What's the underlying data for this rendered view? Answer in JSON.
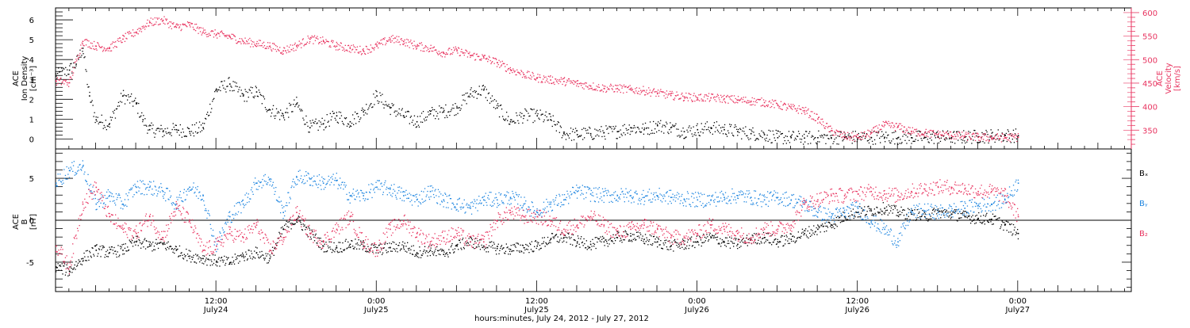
{
  "colors": {
    "density": "#000000",
    "velocity": "#e8335f",
    "bx": "#000000",
    "by": "#1f86e0",
    "bz": "#e8335f",
    "frame": "#000000"
  },
  "chart_data": [
    {
      "type": "scatter",
      "panel": "top",
      "ylabel_left": [
        "ACE",
        "Ion Density",
        "[cm⁻³]"
      ],
      "ylabel_right": [
        "ACE",
        "Velocity",
        "[km/s]"
      ],
      "y_left_ticks": [
        "0",
        "1",
        "2",
        "3",
        "4",
        "5",
        "6"
      ],
      "y_left_range": [
        -0.5,
        6.6
      ],
      "y_right_ticks": [
        "350",
        "400",
        "450",
        "500",
        "550",
        "600"
      ],
      "y_right_range": [
        310,
        610
      ],
      "series": [
        {
          "key": "density",
          "x_hours": [
            0,
            1,
            1.5,
            2,
            2.5,
            3,
            4,
            5,
            6,
            6.5,
            7,
            8,
            9,
            10,
            11,
            12,
            13,
            14,
            15,
            16,
            17,
            18,
            19,
            20,
            21,
            22,
            23,
            24,
            25,
            26,
            27,
            28,
            29,
            30,
            31,
            32,
            33,
            34,
            35,
            36,
            37,
            38,
            39,
            40,
            41,
            42,
            43,
            44,
            45,
            46,
            47,
            48,
            49,
            50,
            51,
            52,
            53,
            54,
            55,
            56,
            57,
            58,
            59,
            60,
            61,
            62,
            63,
            64,
            65,
            66,
            67,
            68,
            69,
            70,
            71,
            72
          ],
          "values": [
            3.2,
            3.5,
            3.8,
            4.6,
            2.2,
            1.0,
            0.8,
            2.2,
            1.8,
            1.0,
            0.5,
            0.4,
            0.5,
            0.4,
            0.6,
            2.5,
            2.8,
            2.2,
            2.4,
            1.5,
            1.2,
            1.8,
            0.6,
            0.8,
            1.2,
            0.9,
            1.4,
            2.2,
            1.6,
            1.2,
            0.9,
            1.3,
            1.4,
            1.6,
            2.3,
            2.5,
            1.6,
            0.9,
            1.2,
            1.2,
            1.0,
            0.3,
            0.25,
            0.3,
            0.35,
            0.4,
            0.6,
            0.5,
            0.7,
            0.6,
            0.4,
            0.5,
            0.6,
            0.5,
            0.4,
            0.3,
            0.25,
            0.1,
            0.1,
            0.08,
            0.1,
            0.1,
            0.12,
            0.1,
            0.1,
            0.12,
            0.1,
            0.1,
            0.1,
            0.12,
            0.1,
            0.12,
            0.15,
            0.18,
            0.2,
            0.2
          ]
        },
        {
          "key": "velocity",
          "axis": "right",
          "x_hours": [
            0,
            1,
            2,
            3,
            4,
            5,
            6,
            7,
            8,
            9,
            10,
            11,
            12,
            13,
            14,
            15,
            16,
            17,
            18,
            19,
            20,
            21,
            22,
            23,
            24,
            25,
            26,
            27,
            28,
            29,
            30,
            31,
            32,
            33,
            34,
            35,
            36,
            37,
            38,
            39,
            40,
            41,
            42,
            43,
            44,
            45,
            46,
            47,
            48,
            49,
            50,
            51,
            52,
            53,
            54,
            55,
            56,
            57,
            58,
            59,
            60,
            61,
            62,
            63,
            64,
            65,
            66,
            67,
            68,
            69,
            70,
            71,
            72
          ],
          "values": [
            455,
            452,
            540,
            530,
            525,
            545,
            560,
            580,
            585,
            570,
            575,
            560,
            555,
            550,
            540,
            535,
            530,
            520,
            530,
            545,
            540,
            530,
            525,
            520,
            530,
            545,
            540,
            530,
            525,
            515,
            520,
            510,
            505,
            495,
            480,
            470,
            462,
            458,
            455,
            450,
            445,
            440,
            440,
            437,
            435,
            430,
            425,
            422,
            420,
            420,
            418,
            415,
            413,
            410,
            405,
            398,
            393,
            375,
            350,
            338,
            335,
            345,
            362,
            358,
            348,
            345,
            342,
            340,
            338,
            336,
            335,
            335,
            336
          ]
        }
      ]
    },
    {
      "type": "scatter",
      "panel": "bottom",
      "ylabel_left": [
        "ACE",
        "B",
        "[nT]"
      ],
      "y_ticks": [
        "-5",
        "0",
        "5"
      ],
      "y_range": [
        -8.5,
        8.5
      ],
      "zero_line": true,
      "legend": [
        "Bₓ",
        "Bᵧ",
        "B₂"
      ],
      "series": [
        {
          "key": "bx",
          "name": "Bₓ",
          "x_hours": [
            0,
            1,
            2,
            3,
            4,
            5,
            6,
            7,
            8,
            9,
            10,
            11,
            12,
            13,
            14,
            15,
            16,
            17,
            18,
            19,
            20,
            21,
            22,
            23,
            24,
            25,
            26,
            27,
            28,
            29,
            30,
            31,
            32,
            33,
            34,
            35,
            36,
            37,
            38,
            39,
            40,
            41,
            42,
            43,
            44,
            45,
            46,
            47,
            48,
            49,
            50,
            51,
            52,
            53,
            54,
            55,
            56,
            57,
            58,
            59,
            60,
            61,
            62,
            63,
            64,
            65,
            66,
            67,
            68,
            69,
            70,
            71,
            72
          ],
          "values": [
            -5.5,
            -6.0,
            -4.5,
            -3.5,
            -3.8,
            -3.5,
            -2.5,
            -3.0,
            -2.8,
            -3.5,
            -4.2,
            -4.5,
            -4.8,
            -5.0,
            -4.2,
            -3.8,
            -4.5,
            -1.0,
            0.2,
            -1.5,
            -3.0,
            -3.2,
            -2.8,
            -3.0,
            -3.5,
            -3.2,
            -3.0,
            -3.8,
            -3.5,
            -4.0,
            -3.0,
            -2.5,
            -3.0,
            -3.3,
            -3.4,
            -3.2,
            -3.0,
            -2.2,
            -2.0,
            -2.5,
            -2.8,
            -2.5,
            -2.0,
            -1.8,
            -2.2,
            -2.5,
            -3.0,
            -2.8,
            -2.5,
            -2.0,
            -2.5,
            -2.8,
            -2.2,
            -2.0,
            -2.5,
            -2.2,
            -1.5,
            -1.0,
            -0.5,
            0.5,
            1.0,
            1.2,
            1.5,
            1.0,
            0.8,
            0.5,
            1.0,
            0.8,
            0.5,
            0.3,
            0.2,
            -0.5,
            -1.5
          ]
        },
        {
          "key": "by",
          "name": "Bᵧ",
          "x_hours": [
            0,
            1,
            2,
            3,
            4,
            5,
            6,
            7,
            8,
            9,
            10,
            11,
            12,
            13,
            14,
            15,
            16,
            17,
            18,
            19,
            20,
            21,
            22,
            23,
            24,
            25,
            26,
            27,
            28,
            29,
            30,
            31,
            32,
            33,
            34,
            35,
            36,
            37,
            38,
            39,
            40,
            41,
            42,
            43,
            44,
            45,
            46,
            47,
            48,
            49,
            50,
            51,
            52,
            53,
            54,
            55,
            56,
            57,
            58,
            59,
            60,
            61,
            62,
            63,
            64,
            65,
            66,
            67,
            68,
            69,
            70,
            71,
            72
          ],
          "values": [
            4.5,
            6.0,
            6.5,
            2.0,
            3.0,
            2.0,
            4.0,
            4.0,
            3.5,
            2.0,
            4.0,
            3.0,
            -3.0,
            0.5,
            2.0,
            4.5,
            5.0,
            1.0,
            5.2,
            5.0,
            4.5,
            4.8,
            3.0,
            3.0,
            4.0,
            3.8,
            3.0,
            2.5,
            3.5,
            2.5,
            2.0,
            1.5,
            2.5,
            2.5,
            2.8,
            2.0,
            1.0,
            2.0,
            2.5,
            3.5,
            3.2,
            3.0,
            3.0,
            3.0,
            2.8,
            3.0,
            2.8,
            2.6,
            2.5,
            2.5,
            2.8,
            3.0,
            2.8,
            2.5,
            2.8,
            2.5,
            2.0,
            1.0,
            0.5,
            1.0,
            1.5,
            0.0,
            -1.0,
            -2.5,
            1.0,
            1.2,
            1.0,
            1.2,
            1.5,
            1.8,
            2.0,
            2.5,
            4.5
          ]
        },
        {
          "key": "bz",
          "name": "B₂",
          "x_hours": [
            0,
            1,
            2,
            3,
            4,
            5,
            6,
            7,
            8,
            9,
            10,
            11,
            12,
            13,
            14,
            15,
            16,
            17,
            18,
            19,
            20,
            21,
            22,
            23,
            24,
            25,
            26,
            27,
            28,
            29,
            30,
            31,
            32,
            33,
            34,
            35,
            36,
            37,
            38,
            39,
            40,
            41,
            42,
            43,
            44,
            45,
            46,
            47,
            48,
            49,
            50,
            51,
            52,
            53,
            54,
            55,
            56,
            57,
            58,
            59,
            60,
            61,
            62,
            63,
            64,
            65,
            66,
            67,
            68,
            69,
            70,
            71,
            72
          ],
          "values": [
            -3.0,
            -5.5,
            2.0,
            4.0,
            0.5,
            -1.0,
            -1.5,
            0.5,
            -2.0,
            1.5,
            0.0,
            -3.5,
            -3.0,
            -1.5,
            -2.0,
            -0.5,
            -3.5,
            -2.0,
            1.0,
            -1.5,
            -2.5,
            -1.0,
            0.5,
            -2.5,
            -3.5,
            -1.0,
            0.0,
            -1.5,
            -2.5,
            -2.0,
            -1.5,
            -2.5,
            -2.5,
            0.0,
            1.0,
            0.5,
            0.5,
            0.0,
            -1.0,
            -0.5,
            0.5,
            -0.5,
            -1.5,
            -1.0,
            -0.5,
            -1.0,
            -2.0,
            -2.0,
            -1.5,
            -0.5,
            -1.0,
            -1.5,
            -2.0,
            -1.0,
            -1.0,
            -0.5,
            2.0,
            2.5,
            3.0,
            3.0,
            3.2,
            3.5,
            3.2,
            3.0,
            3.5,
            3.8,
            4.0,
            4.0,
            3.8,
            3.5,
            3.5,
            3.0,
            0.5
          ]
        }
      ]
    }
  ],
  "x_axis": {
    "range_hours": [
      0,
      80.5
    ],
    "xlabel": "hours:minutes, July 24, 2012 - July 27, 2012",
    "ticks": [
      {
        "hour": 12,
        "time": "12:00",
        "date": "July24"
      },
      {
        "hour": 24,
        "time": "0:00",
        "date": "July25"
      },
      {
        "hour": 36,
        "time": "12:00",
        "date": "July25"
      },
      {
        "hour": 48,
        "time": "0:00",
        "date": "July26"
      },
      {
        "hour": 60,
        "time": "12:00",
        "date": "July26"
      },
      {
        "hour": 72,
        "time": "0:00",
        "date": "July27"
      }
    ]
  }
}
